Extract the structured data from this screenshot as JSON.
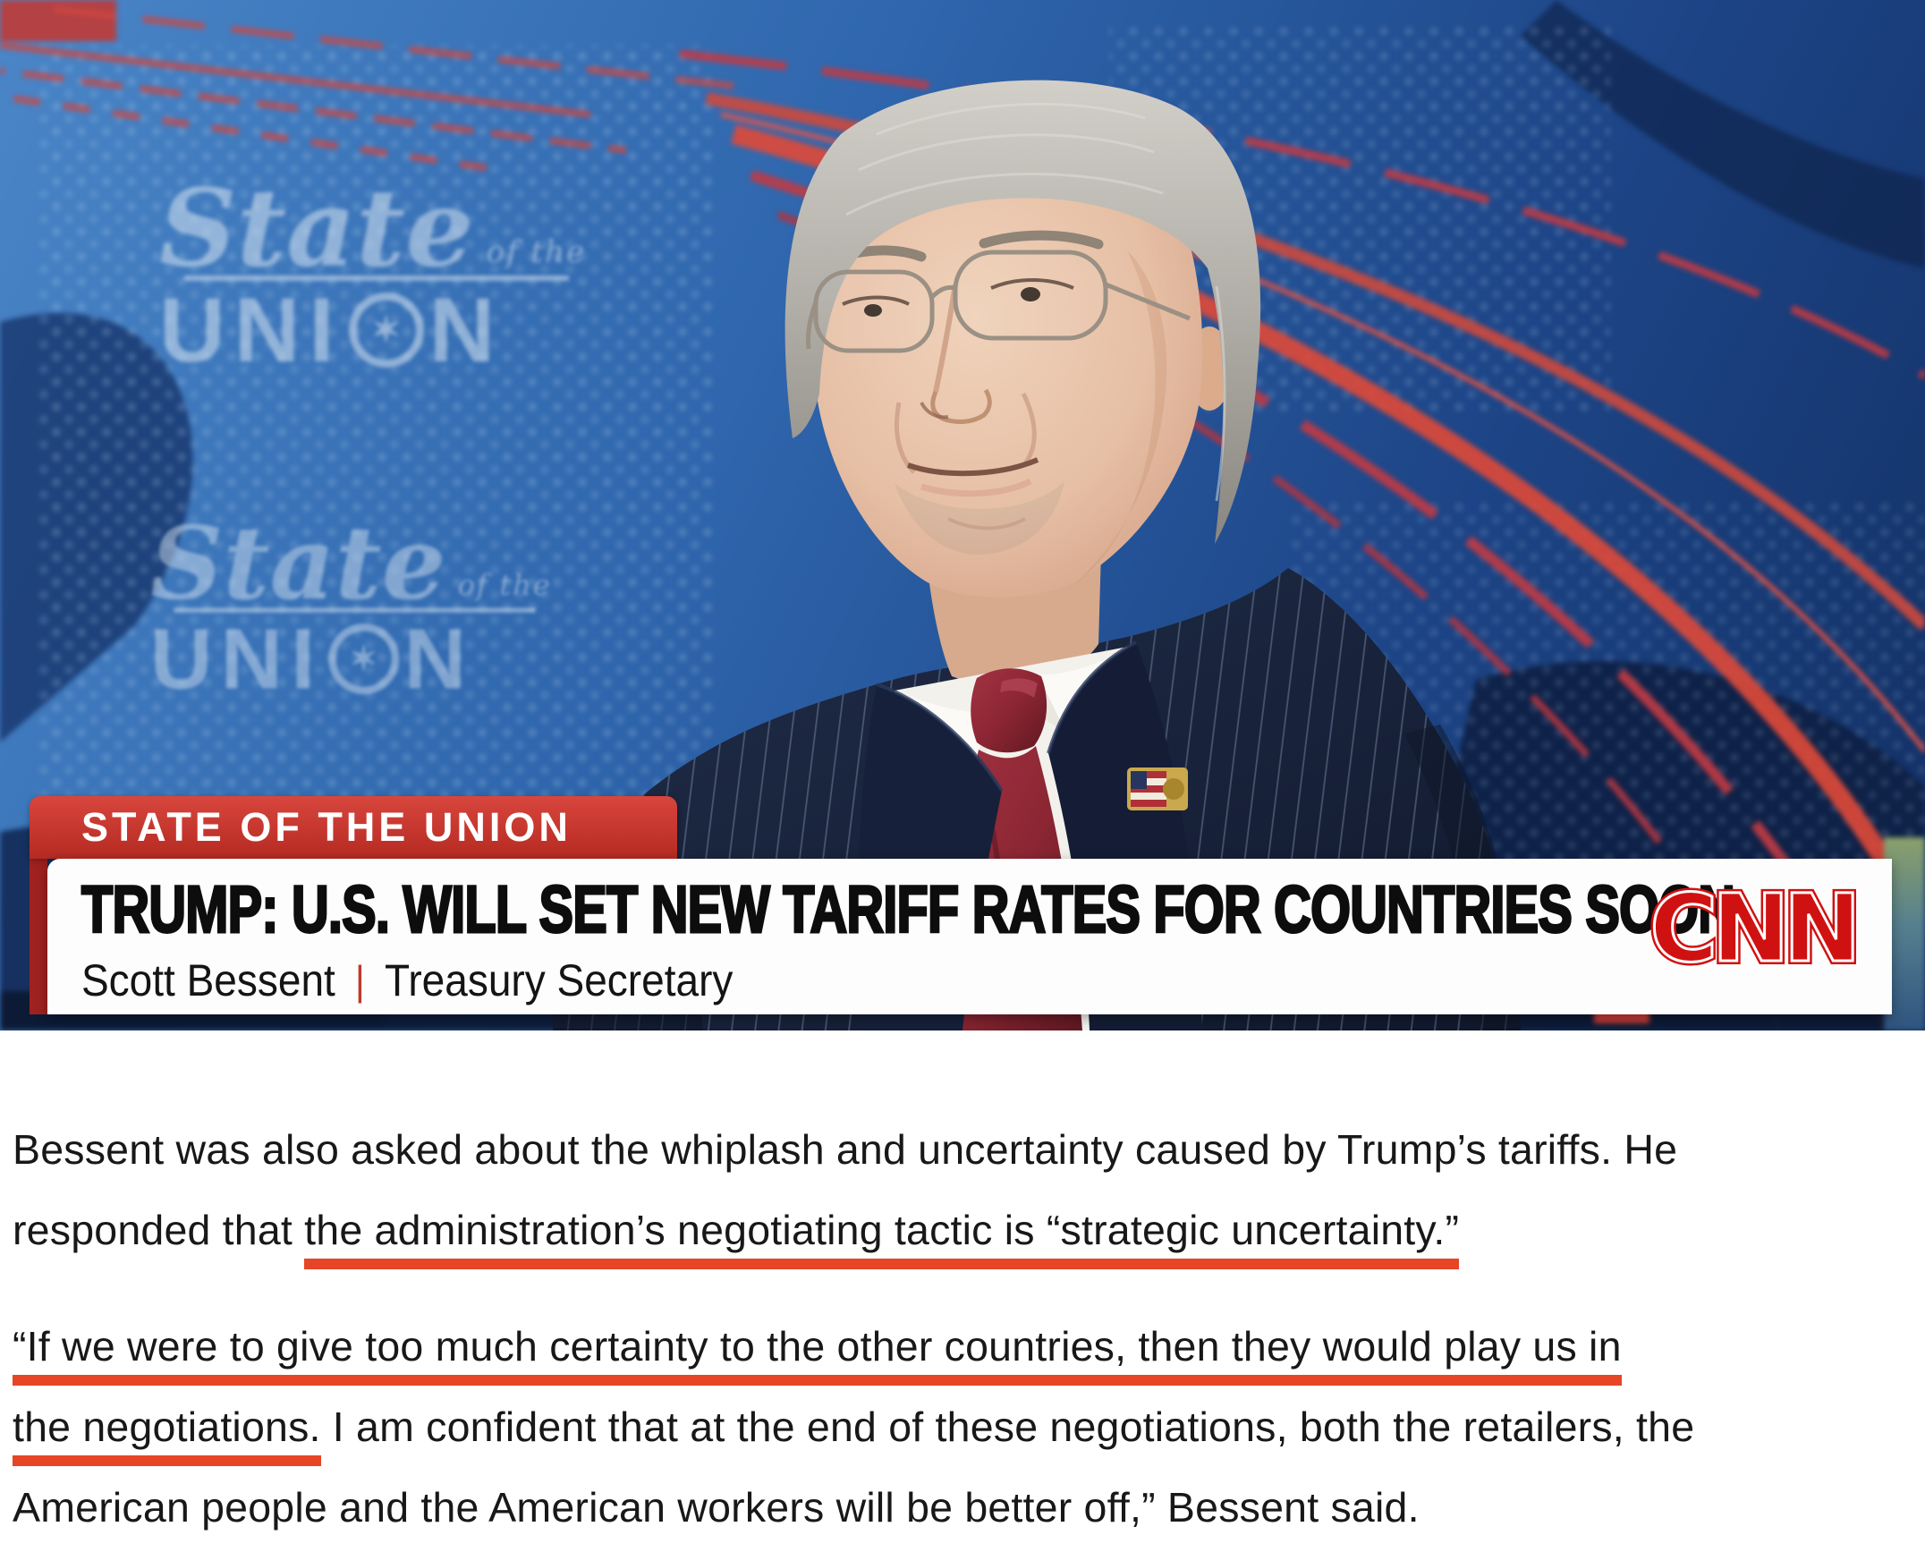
{
  "video": {
    "watermark": {
      "state": "State",
      "of_the": "of the",
      "union_pre": "UNI",
      "union_o_star": "✶",
      "union_post": "N"
    },
    "kicker": "STATE OF THE UNION",
    "headline": "TRUMP: U.S. WILL SET NEW TARIFF RATES FOR COUNTRIES SOON",
    "byline": {
      "name": "Scott Bessent",
      "separator": "|",
      "role": "Treasury Secretary"
    },
    "network": "CNN"
  },
  "article": {
    "paragraphs": [
      {
        "lines": [
          [
            {
              "t": "Bessent was also asked about the whiplash and uncertainty caused by Trump’s tariffs. He",
              "u": false
            }
          ],
          [
            {
              "t": "responded that ",
              "u": false
            },
            {
              "t": "the administration’s negotiating tactic is “strategic uncertainty.”",
              "u": true
            }
          ]
        ]
      },
      {
        "lines": [
          [
            {
              "t": "“If we were to give too much certainty to the other countries, then they would play us in",
              "u": true
            }
          ],
          [
            {
              "t": "the negotiations.",
              "u": true
            },
            {
              "t": " I am confident that at the end of these negotiations, both the retailers, the",
              "u": false
            }
          ],
          [
            {
              "t": "American people and the American workers will be better off,” Bessent said.",
              "u": false
            }
          ]
        ]
      }
    ]
  },
  "colors": {
    "cnn_red": "#cc0d0d",
    "kicker_red": "#c7372e",
    "stripe_red": "#a02220",
    "underline": "#e64526",
    "sep_red": "#c0392b",
    "headline_ink": "#0d0d0d"
  }
}
